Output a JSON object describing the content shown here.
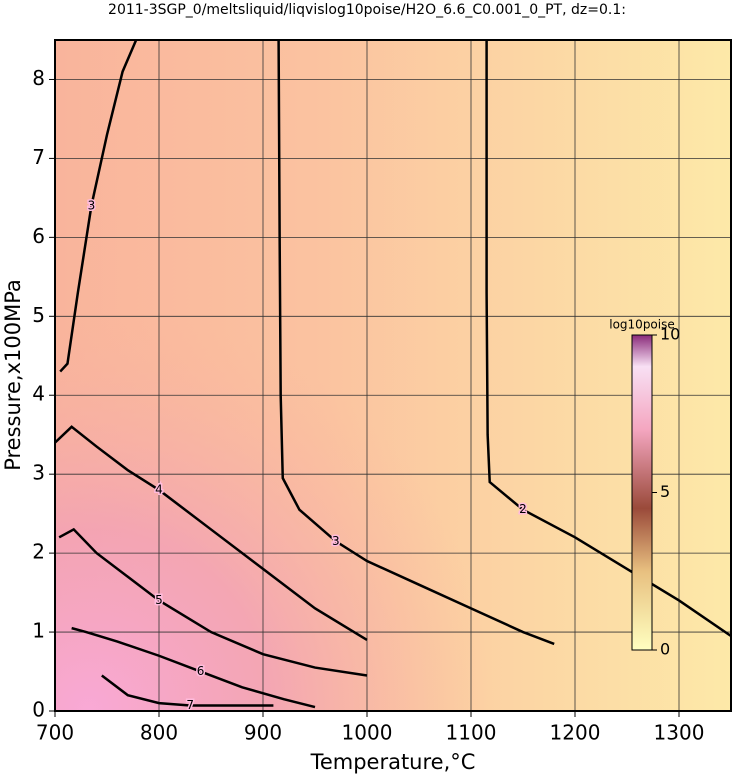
{
  "chart_data": {
    "type": "contour",
    "title": "2011-3SGP_0/meltsliquid/liqvislog10poise/H2O_6.6_C0.001_0_PT, dz=0.1:",
    "x_label": "Temperature,°C",
    "y_label": "Pressure,x100MPa",
    "xlim": [
      700,
      1350
    ],
    "ylim": [
      0,
      8.5
    ],
    "xticks": [
      700,
      800,
      900,
      1000,
      1100,
      1200,
      1300
    ],
    "yticks": [
      0,
      1,
      2,
      3,
      4,
      5,
      6,
      7,
      8
    ],
    "grid": true,
    "color": "#000000",
    "contours": [
      {
        "level": 2,
        "x": [
          1115,
          1115,
          1116,
          1118,
          1150,
          1200,
          1250,
          1300,
          1350
        ],
        "y": [
          8.5,
          5.3,
          3.5,
          2.9,
          2.55,
          2.2,
          1.8,
          1.4,
          0.95
        ]
      },
      {
        "level": 3,
        "x": [
          915,
          916,
          917,
          919,
          935,
          970,
          1000,
          1050,
          1100,
          1150,
          1180
        ],
        "y": [
          8.5,
          6.0,
          4.0,
          2.95,
          2.55,
          2.15,
          1.9,
          1.6,
          1.3,
          1.0,
          0.85
        ]
      },
      {
        "level": 3,
        "x": [
          705,
          712,
          722,
          735,
          750,
          765,
          778
        ],
        "y": [
          4.3,
          4.4,
          5.3,
          6.4,
          7.3,
          8.1,
          8.5
        ]
      },
      {
        "level": 4,
        "x": [
          700,
          716,
          740,
          770,
          800,
          850,
          900,
          950,
          1000
        ],
        "y": [
          3.4,
          3.6,
          3.35,
          3.05,
          2.8,
          2.3,
          1.8,
          1.3,
          0.9
        ]
      },
      {
        "level": 5,
        "x": [
          704,
          718,
          740,
          770,
          800,
          850,
          900,
          950,
          1000
        ],
        "y": [
          2.2,
          2.3,
          2.0,
          1.7,
          1.4,
          1.0,
          0.72,
          0.55,
          0.45
        ]
      },
      {
        "level": 6,
        "x": [
          716,
          730,
          760,
          800,
          840,
          880,
          920,
          950
        ],
        "y": [
          1.05,
          1.0,
          0.88,
          0.7,
          0.5,
          0.3,
          0.15,
          0.05
        ]
      },
      {
        "level": 7,
        "x": [
          745,
          770,
          800,
          830,
          870,
          910
        ],
        "y": [
          0.45,
          0.2,
          0.1,
          0.07,
          0.07,
          0.07
        ]
      }
    ],
    "colorbar": {
      "label": "log10poise",
      "lim": [
        0,
        10
      ],
      "ticks": [
        0,
        5,
        10
      ]
    }
  }
}
